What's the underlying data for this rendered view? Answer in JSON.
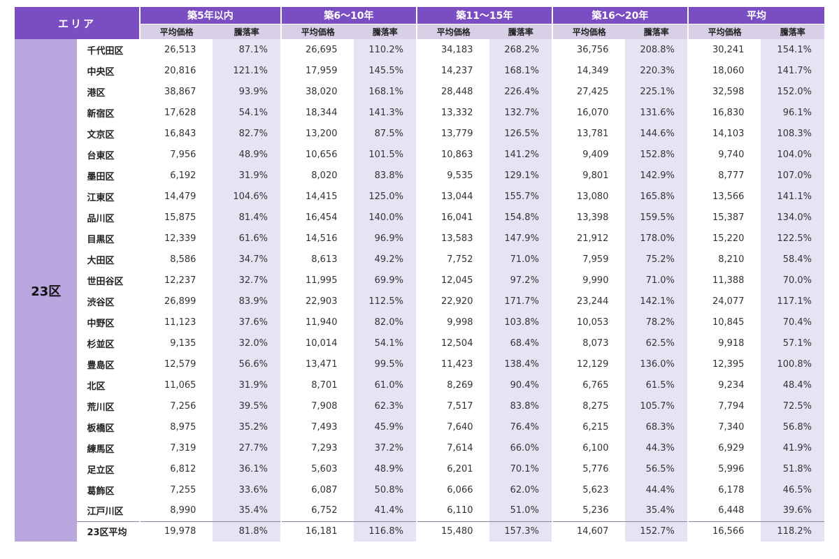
{
  "header": {
    "area_label": "エリア",
    "groups": [
      "築5年以内",
      "築6～10年",
      "築11～15年",
      "築16～20年",
      "平均"
    ],
    "sub_price": "平均価格",
    "sub_rate": "騰落率"
  },
  "region_label": "23区",
  "rows": [
    {
      "ward": "千代田区",
      "v": [
        "26,513",
        "87.1%",
        "26,695",
        "110.2%",
        "34,183",
        "268.2%",
        "36,756",
        "208.8%",
        "30,241",
        "154.1%"
      ]
    },
    {
      "ward": "中央区",
      "v": [
        "20,816",
        "121.1%",
        "17,959",
        "145.5%",
        "14,237",
        "168.1%",
        "14,349",
        "220.3%",
        "18,060",
        "141.7%"
      ]
    },
    {
      "ward": "港区",
      "v": [
        "38,867",
        "93.9%",
        "38,020",
        "168.1%",
        "28,448",
        "226.4%",
        "27,425",
        "225.1%",
        "32,598",
        "152.0%"
      ]
    },
    {
      "ward": "新宿区",
      "v": [
        "17,628",
        "54.1%",
        "18,344",
        "141.3%",
        "13,332",
        "132.7%",
        "16,070",
        "131.6%",
        "16,830",
        "96.1%"
      ]
    },
    {
      "ward": "文京区",
      "v": [
        "16,843",
        "82.7%",
        "13,200",
        "87.5%",
        "13,779",
        "126.5%",
        "13,781",
        "144.6%",
        "14,103",
        "108.3%"
      ]
    },
    {
      "ward": "台東区",
      "v": [
        "7,956",
        "48.9%",
        "10,656",
        "101.5%",
        "10,863",
        "141.2%",
        "9,409",
        "152.8%",
        "9,740",
        "104.0%"
      ]
    },
    {
      "ward": "墨田区",
      "v": [
        "6,192",
        "31.9%",
        "8,020",
        "83.8%",
        "9,535",
        "129.1%",
        "9,801",
        "142.9%",
        "8,777",
        "107.0%"
      ]
    },
    {
      "ward": "江東区",
      "v": [
        "14,479",
        "104.6%",
        "14,415",
        "125.0%",
        "13,044",
        "155.7%",
        "13,080",
        "165.8%",
        "13,566",
        "141.1%"
      ]
    },
    {
      "ward": "品川区",
      "v": [
        "15,875",
        "81.4%",
        "16,454",
        "140.0%",
        "16,041",
        "154.8%",
        "13,398",
        "159.5%",
        "15,387",
        "134.0%"
      ]
    },
    {
      "ward": "目黒区",
      "v": [
        "12,339",
        "61.6%",
        "14,516",
        "96.9%",
        "13,583",
        "147.9%",
        "21,912",
        "178.0%",
        "15,220",
        "122.5%"
      ]
    },
    {
      "ward": "大田区",
      "v": [
        "8,586",
        "34.7%",
        "8,613",
        "49.2%",
        "7,752",
        "71.0%",
        "7,959",
        "75.2%",
        "8,210",
        "58.4%"
      ]
    },
    {
      "ward": "世田谷区",
      "v": [
        "12,237",
        "32.7%",
        "11,995",
        "69.9%",
        "12,045",
        "97.2%",
        "9,990",
        "71.0%",
        "11,388",
        "70.0%"
      ]
    },
    {
      "ward": "渋谷区",
      "v": [
        "26,899",
        "83.9%",
        "22,903",
        "112.5%",
        "22,920",
        "171.7%",
        "23,244",
        "142.1%",
        "24,077",
        "117.1%"
      ]
    },
    {
      "ward": "中野区",
      "v": [
        "11,123",
        "37.6%",
        "11,940",
        "82.0%",
        "9,998",
        "103.8%",
        "10,053",
        "78.2%",
        "10,845",
        "70.4%"
      ]
    },
    {
      "ward": "杉並区",
      "v": [
        "9,135",
        "32.0%",
        "10,014",
        "54.1%",
        "12,504",
        "68.4%",
        "8,073",
        "62.5%",
        "9,918",
        "57.1%"
      ]
    },
    {
      "ward": "豊島区",
      "v": [
        "12,579",
        "56.6%",
        "13,471",
        "99.5%",
        "11,423",
        "138.4%",
        "12,129",
        "136.0%",
        "12,395",
        "100.8%"
      ]
    },
    {
      "ward": "北区",
      "v": [
        "11,065",
        "31.9%",
        "8,701",
        "61.0%",
        "8,269",
        "90.4%",
        "6,765",
        "61.5%",
        "9,234",
        "48.4%"
      ]
    },
    {
      "ward": "荒川区",
      "v": [
        "7,256",
        "39.5%",
        "7,908",
        "62.3%",
        "7,517",
        "83.8%",
        "8,275",
        "105.7%",
        "7,794",
        "72.5%"
      ]
    },
    {
      "ward": "板橋区",
      "v": [
        "8,975",
        "35.2%",
        "7,493",
        "45.9%",
        "7,640",
        "76.4%",
        "6,215",
        "68.3%",
        "7,340",
        "56.8%"
      ]
    },
    {
      "ward": "練馬区",
      "v": [
        "7,319",
        "27.7%",
        "7,293",
        "37.2%",
        "7,614",
        "66.0%",
        "6,100",
        "44.3%",
        "6,929",
        "41.9%"
      ]
    },
    {
      "ward": "足立区",
      "v": [
        "6,812",
        "36.1%",
        "5,603",
        "48.9%",
        "6,201",
        "70.1%",
        "5,776",
        "56.5%",
        "5,996",
        "51.8%"
      ]
    },
    {
      "ward": "葛飾区",
      "v": [
        "7,255",
        "33.6%",
        "6,087",
        "50.8%",
        "6,066",
        "62.0%",
        "5,623",
        "44.4%",
        "6,178",
        "46.5%"
      ]
    },
    {
      "ward": "江戸川区",
      "v": [
        "8,990",
        "35.4%",
        "6,752",
        "41.4%",
        "6,110",
        "51.0%",
        "5,236",
        "35.4%",
        "6,448",
        "39.6%"
      ]
    }
  ],
  "average_row": {
    "ward": "23区平均",
    "v": [
      "19,978",
      "81.8%",
      "16,181",
      "116.8%",
      "15,480",
      "157.3%",
      "14,607",
      "152.7%",
      "16,566",
      "118.2%"
    ]
  }
}
